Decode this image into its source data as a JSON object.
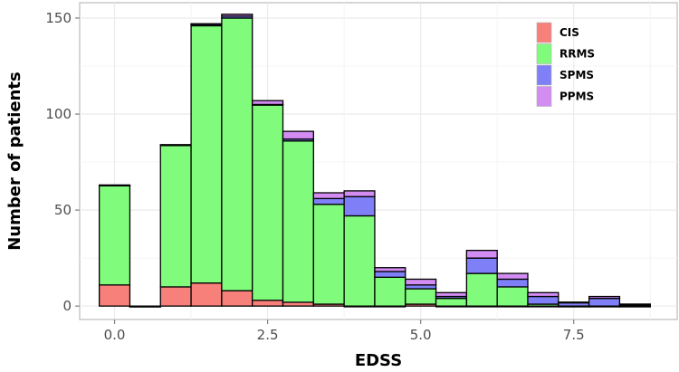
{
  "chart_data": {
    "type": "bar",
    "stacked": true,
    "title": "",
    "xlabel": "EDSS",
    "ylabel": "Number of patients",
    "x": [
      0,
      0.5,
      1.0,
      1.5,
      2.0,
      2.5,
      3.0,
      3.5,
      4.0,
      4.5,
      5.0,
      5.5,
      6.0,
      6.5,
      7.0,
      7.5,
      8.0,
      8.5
    ],
    "bin_width": 0.5,
    "series": [
      {
        "name": "CIS",
        "color": "#f8807b",
        "values": [
          11,
          0,
          10,
          12,
          8,
          3,
          2,
          1,
          0,
          0,
          1,
          0,
          0,
          0,
          0,
          0,
          0,
          0
        ]
      },
      {
        "name": "RRMS",
        "color": "#80fb7c",
        "values": [
          52,
          0,
          74,
          134,
          142,
          102,
          84,
          52,
          47,
          15,
          8,
          4,
          17,
          10,
          1,
          0,
          0,
          0
        ]
      },
      {
        "name": "SPMS",
        "color": "#7f7ff7",
        "values": [
          0,
          0,
          0,
          1,
          1,
          0,
          1,
          3,
          10,
          3,
          2,
          1,
          8,
          4,
          4,
          2,
          4,
          1
        ]
      },
      {
        "name": "PPMS",
        "color": "#d28cf2",
        "values": [
          0,
          0,
          0,
          0,
          1,
          2,
          4,
          3,
          3,
          2,
          3,
          2,
          4,
          3,
          2,
          0,
          1,
          0
        ]
      }
    ],
    "xticks": [
      0,
      2.5,
      5,
      7.5
    ],
    "xtick_labels": [
      "0.0",
      "2.5",
      "5.0",
      "7.5"
    ],
    "yticks": [
      0,
      50,
      100,
      150
    ],
    "ytick_labels": [
      "0",
      "50",
      "100",
      "150"
    ],
    "xlim": [
      -0.57,
      9.19
    ],
    "ylim": [
      -7,
      158
    ],
    "grid": true,
    "legend_position": "top-right"
  }
}
